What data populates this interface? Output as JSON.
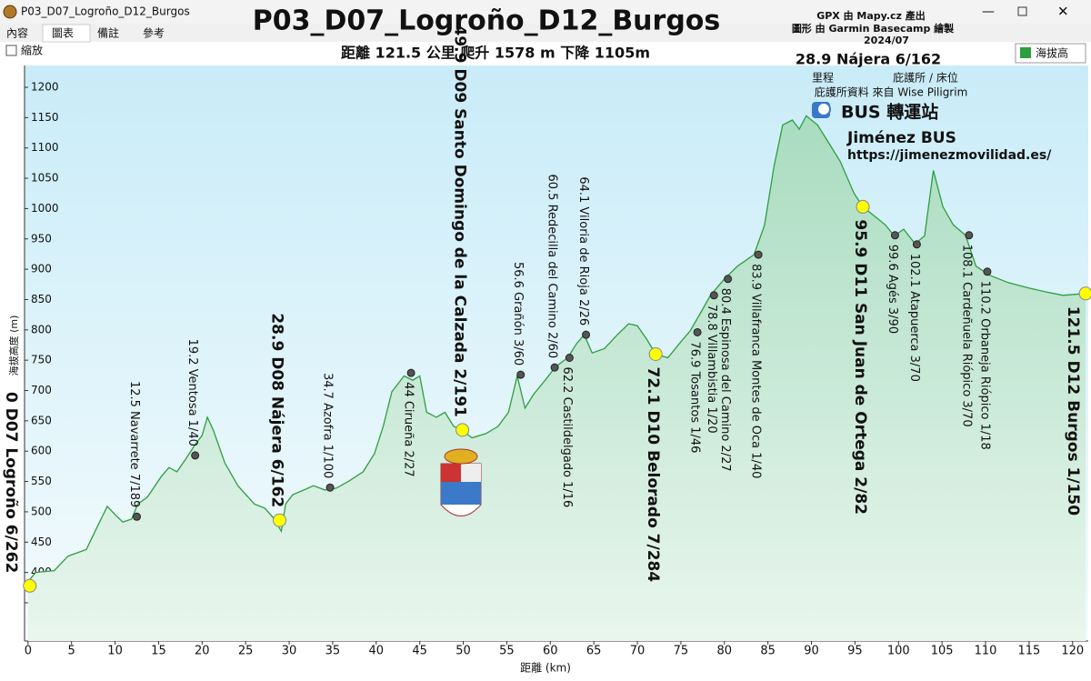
{
  "window": {
    "title": "P03_D07_Logroño_D12_Burgos",
    "tabs": [
      "內容",
      "圖表",
      "備註",
      "參考"
    ],
    "zoom_checkbox": "縮放"
  },
  "chart_data": {
    "type": "area",
    "title": "P03_D07_Logroño_D12_Burgos",
    "subtitle": "距離 121.5 公里 爬升 1578 m 下降 1105m",
    "credits": [
      "GPX 由 Mapy.cz 產出",
      "圖形 由 Garmin Basecamp 繪製",
      "2024/07"
    ],
    "key_example": "28.9 Nájera 6/162",
    "key_notes": [
      "里程",
      "庇護所 / 床位",
      "庇護所資料 來自 Wise Piligrim"
    ],
    "bus_note": "BUS 轉運站",
    "bus_company": "Jiménez BUS",
    "bus_url": "https://jimenezmovilidad.es/",
    "x_label": "距離 (km)",
    "y_label": "海拔高度 (m)",
    "legend_position": "top-right",
    "xlim": [
      -0.4,
      121.8
    ],
    "ylim": [
      287,
      1236
    ],
    "xticks": [
      0,
      5,
      10,
      15,
      20,
      25,
      30,
      35,
      40,
      45,
      50,
      55,
      60,
      65,
      70,
      75,
      80,
      85,
      90,
      95,
      100,
      105,
      110,
      115,
      120
    ],
    "yticks": [
      350,
      400,
      450,
      500,
      550,
      600,
      650,
      700,
      750,
      800,
      850,
      900,
      950,
      1000,
      1050,
      1100,
      1150,
      1200
    ],
    "series": [
      {
        "name": "海拔高",
        "color": "#2e9e3e",
        "x": [
          0,
          0.9,
          3,
          4.6,
          6.7,
          7.7,
          9.1,
          10.1,
          10.9,
          11.9,
          12.6,
          13.7,
          15.3,
          16.2,
          17.1,
          18.2,
          19.2,
          20,
          20.6,
          21.3,
          22.6,
          24.1,
          26,
          27.2,
          28.3,
          29.1,
          29.6,
          30.4,
          31.7,
          32.8,
          34.1,
          35.4,
          36.9,
          38.5,
          39.8,
          40.8,
          41.8,
          43.2,
          44.2,
          45,
          45.8,
          46.9,
          47.9,
          48.9,
          49.8,
          51,
          52.6,
          54,
          55.2,
          56.2,
          57.1,
          58.1,
          59.4,
          60.6,
          62,
          63,
          63.9,
          64.8,
          66.2,
          67.7,
          69,
          70,
          71.1,
          72.1,
          73.5,
          74.8,
          76.1,
          77.3,
          78.4,
          80,
          81.5,
          83.4,
          84.6,
          85.7,
          86.7,
          87.8,
          88.6,
          89.4,
          90.7,
          92,
          93.3,
          94.9,
          95.9,
          97.2,
          98.5,
          99.5,
          100.6,
          101.9,
          103,
          104,
          105.1,
          106.3,
          107.7,
          108.9,
          110.5,
          112.6,
          114.7,
          116.8,
          118.9,
          121.5
        ],
        "values": [
          385,
          400,
          403,
          427,
          438,
          468,
          509,
          494,
          483,
          488,
          513,
          524,
          558,
          573,
          566,
          589,
          611,
          626,
          656,
          634,
          581,
          543,
          513,
          506,
          488,
          468,
          513,
          528,
          536,
          543,
          536,
          539,
          551,
          566,
          596,
          641,
          698,
          724,
          717,
          724,
          664,
          656,
          664,
          641,
          635,
          622,
          629,
          641,
          664,
          724,
          671,
          694,
          717,
          739,
          754,
          777,
          792,
          762,
          769,
          792,
          810,
          807,
          784,
          760,
          754,
          777,
          799,
          829,
          857,
          884,
          905,
          924,
          972,
          1070,
          1138,
          1146,
          1131,
          1153,
          1138,
          1108,
          1078,
          1025,
          1003,
          988,
          973,
          955,
          966,
          942,
          955,
          1063,
          1003,
          973,
          956,
          905,
          890,
          878,
          870,
          863,
          857,
          860
        ]
      }
    ],
    "waypoints": [
      {
        "x": 0.2,
        "y": 378,
        "label": "0 D07 Logroño 6/262",
        "color": "#ffff00"
      },
      {
        "x": 12.5,
        "y": 492,
        "label": "12.5 Navarrete 7/189",
        "color": "#555555"
      },
      {
        "x": 19.2,
        "y": 593,
        "label": "19.2 Ventosa 1/40",
        "color": "#555555"
      },
      {
        "x": 28.9,
        "y": 486,
        "label": "28.9 D08 Nájera 6/162",
        "color": "#ffff00"
      },
      {
        "x": 34.7,
        "y": 540,
        "label": "34.7 Azofra 1/100",
        "color": "#555555"
      },
      {
        "x": 44,
        "y": 729,
        "label": "44 Cirueña 2/27",
        "color": "#555555"
      },
      {
        "x": 49.9,
        "y": 635,
        "label": "49.9 D09 Santo Domingo de la Calzada 2/191",
        "color": "#ffff00"
      },
      {
        "x": 56.6,
        "y": 726,
        "label": "56.6 Grañón 3/60",
        "color": "#555555"
      },
      {
        "x": 60.5,
        "y": 738,
        "label": "60.5 Redecilla del Camino 2/60",
        "color": "#555555"
      },
      {
        "x": 62.2,
        "y": 754,
        "label": "62.2 Castildelgado 1/16",
        "color": "#555555"
      },
      {
        "x": 64.1,
        "y": 792,
        "label": "64.1 Viloria de Rioja 2/26",
        "color": "#555555"
      },
      {
        "x": 72.1,
        "y": 760,
        "label": "72.1 D10 Belorado 7/284",
        "color": "#ffff00"
      },
      {
        "x": 76.9,
        "y": 796,
        "label": "76.9 Tosantos 1/46",
        "color": "#555555"
      },
      {
        "x": 78.8,
        "y": 857,
        "label": "78.8 Villambistia 1/20",
        "color": "#555555"
      },
      {
        "x": 80.4,
        "y": 884,
        "label": "80.4 Espinosa del Camino 2/27",
        "color": "#555555"
      },
      {
        "x": 83.9,
        "y": 924,
        "label": "83.9 Villafranca Montes de Oca 1/40",
        "color": "#555555"
      },
      {
        "x": 95.9,
        "y": 1003,
        "label": "95.9 D11 San Juan de Ortega 2/82",
        "color": "#ffff00"
      },
      {
        "x": 99.6,
        "y": 956,
        "label": "99.6 Agés 3/90",
        "color": "#555555"
      },
      {
        "x": 102.1,
        "y": 941,
        "label": "102.1 Atapuerca 3/70",
        "color": "#555555"
      },
      {
        "x": 108.1,
        "y": 956,
        "label": "108.1 Cardeñuela Riópico 3/70",
        "color": "#555555"
      },
      {
        "x": 110.2,
        "y": 896,
        "label": "110.2 Orbaneja Riópico 1/18",
        "color": "#555555"
      },
      {
        "x": 121.5,
        "y": 860,
        "label": "121.5 D12 Burgos 1/150",
        "color": "#ffff00"
      }
    ]
  }
}
